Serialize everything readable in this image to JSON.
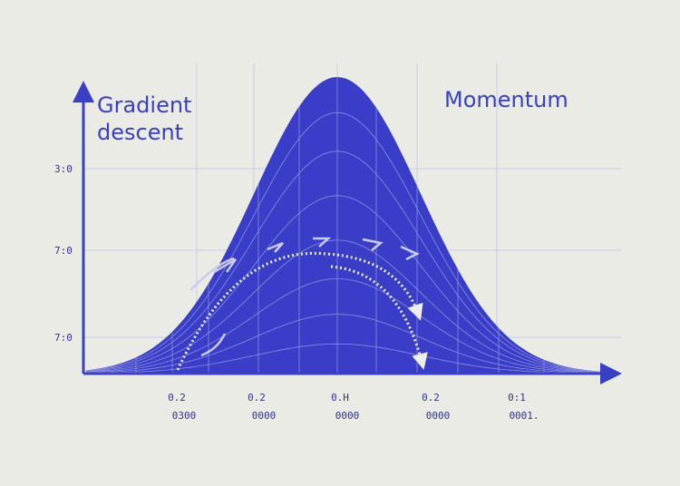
{
  "labels": {
    "left": [
      "Gradient",
      "descent"
    ],
    "right": "Momentum"
  },
  "y_labels": [
    "3:0",
    "7:0",
    "7:0"
  ],
  "x_labels": {
    "top": [
      "0.2",
      "0.2",
      "0.H",
      "0.2",
      "0:1"
    ],
    "bottom": [
      "0300",
      "0000",
      "0000",
      "0000",
      "0001."
    ]
  }
}
